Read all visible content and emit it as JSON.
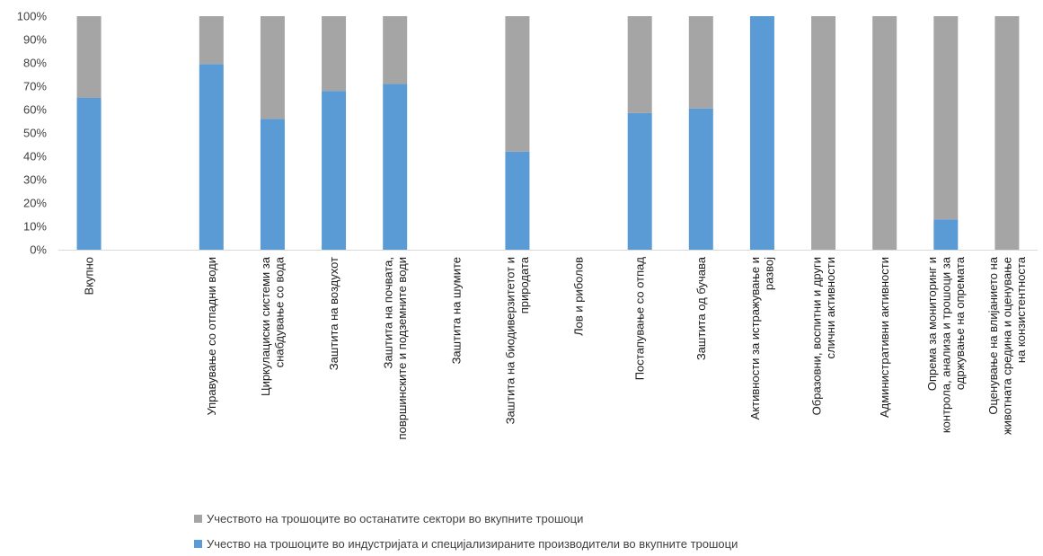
{
  "chart_data": {
    "type": "bar",
    "stacked": true,
    "percent": true,
    "categories": [
      [
        "Вкупно"
      ],
      [
        ""
      ],
      [
        "Управување со отпадни води"
      ],
      [
        "Циркулациски системи за",
        "снабдување со вода"
      ],
      [
        "Заштита на воздухот"
      ],
      [
        "Заштита на почвата,",
        "површинските и подземните води"
      ],
      [
        "Заштита на шумите"
      ],
      [
        "Заштита на биодиверзитетот и",
        "природата"
      ],
      [
        "Лов и риболов"
      ],
      [
        "Постапување со отпад"
      ],
      [
        "Заштита од бучава"
      ],
      [
        "Активности за истражување и",
        "развој"
      ],
      [
        "Образовни, воспитни и други",
        "слични активности"
      ],
      [
        "Административни активности"
      ],
      [
        "Опрема за мониторинг и",
        "контрола, анализа и трошоци за",
        "одржување на опремата"
      ],
      [
        "Оценување на влијанието на",
        "животната средина и оценување",
        "на конзистентноста"
      ]
    ],
    "series": [
      {
        "name": "Учество на трошоците во индустријата и специјализираните производители во вкупните трошоци",
        "color": "#5b9bd5",
        "values": [
          65,
          0,
          79.5,
          56,
          68,
          71,
          0,
          42,
          0,
          58.5,
          60.5,
          100,
          0,
          0,
          13,
          0
        ]
      },
      {
        "name": "Учеството на трошоците во останатите сектори во вкупните трошоци",
        "color": "#a5a5a5",
        "values": [
          35,
          0,
          20.5,
          44,
          32,
          29,
          0,
          58,
          0,
          41.5,
          39.5,
          0,
          100,
          100,
          87,
          100
        ]
      }
    ],
    "yticks": [
      "0%",
      "10%",
      "20%",
      "30%",
      "40%",
      "50%",
      "60%",
      "70%",
      "80%",
      "90%",
      "100%"
    ],
    "ylim": [
      0,
      100
    ],
    "grid": false,
    "legend_position": "bottom"
  },
  "legend": {
    "item1": "Учеството на трошоците во останатите сектори во вкупните трошоци",
    "item2": "Учество на трошоците во индустријата и специјализираните производители во вкупните трошоци"
  },
  "colors": {
    "blue": "#5b9bd5",
    "gray": "#a5a5a5",
    "axis": "#d9d9d9"
  }
}
